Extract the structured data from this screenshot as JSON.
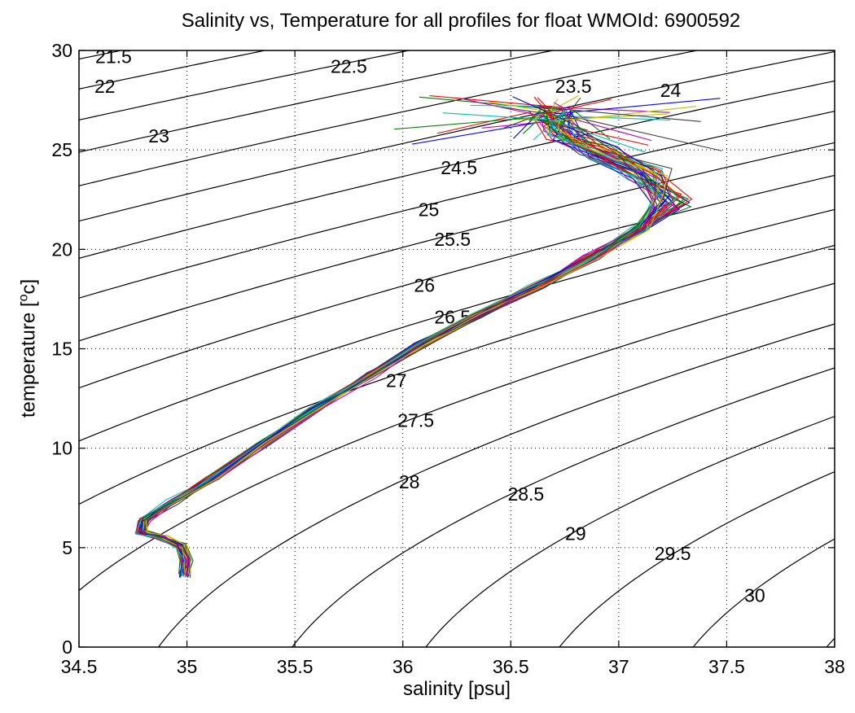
{
  "chart_data": {
    "type": "line",
    "title": "Salinity vs, Temperature for all profiles for float WMOId: 6900592",
    "xlabel": "salinity [psu]",
    "ylabel_main": "temperature [",
    "ylabel_sup": "o",
    "ylabel_end": "c]",
    "xlim": [
      34.5,
      38
    ],
    "ylim": [
      0,
      30
    ],
    "x_ticks": [
      34.5,
      35,
      35.5,
      36,
      36.5,
      37,
      37.5,
      38
    ],
    "x_tick_labels": [
      "34.5",
      "35",
      "35.5",
      "36",
      "36.5",
      "37",
      "37.5",
      "38"
    ],
    "y_ticks": [
      0,
      5,
      10,
      15,
      20,
      25,
      30
    ],
    "y_tick_labels": [
      "0",
      "5",
      "10",
      "15",
      "20",
      "25",
      "30"
    ],
    "grid": true,
    "grid_style": "dotted",
    "density_contours": {
      "levels": [
        "21.5",
        "22",
        "22.5",
        "23",
        "23.5",
        "24",
        "24.5",
        "25",
        "25.5",
        "26",
        "26.5",
        "27",
        "27.5",
        "28",
        "28.5",
        "29",
        "29.5",
        "30"
      ],
      "label_positions": [
        {
          "label": "21.5",
          "x": 34.66,
          "y": 29.7
        },
        {
          "label": "22",
          "x": 34.62,
          "y": 28.2
        },
        {
          "label": "22.5",
          "x": 35.75,
          "y": 29.2
        },
        {
          "label": "23",
          "x": 34.87,
          "y": 25.7
        },
        {
          "label": "23.5",
          "x": 36.79,
          "y": 28.2
        },
        {
          "label": "24",
          "x": 37.24,
          "y": 28.0
        },
        {
          "label": "24.5",
          "x": 36.26,
          "y": 24.1
        },
        {
          "label": "25",
          "x": 36.12,
          "y": 22.0
        },
        {
          "label": "25.5",
          "x": 36.23,
          "y": 20.5
        },
        {
          "label": "26",
          "x": 36.1,
          "y": 18.2
        },
        {
          "label": "26.5",
          "x": 36.23,
          "y": 16.6
        },
        {
          "label": "27",
          "x": 35.97,
          "y": 13.4
        },
        {
          "label": "27.5",
          "x": 36.06,
          "y": 11.4
        },
        {
          "label": "28",
          "x": 36.03,
          "y": 8.3
        },
        {
          "label": "28.5",
          "x": 36.57,
          "y": 7.7
        },
        {
          "label": "29",
          "x": 36.8,
          "y": 5.7
        },
        {
          "label": "29.5",
          "x": 37.25,
          "y": 4.7
        },
        {
          "label": "30",
          "x": 37.63,
          "y": 2.6
        }
      ]
    },
    "profiles": {
      "count": 42,
      "colors": [
        "#0000ff",
        "#008000",
        "#ff0000",
        "#00bfbf",
        "#bf00bf",
        "#bfbf00",
        "#404040"
      ],
      "mean_path": [
        {
          "x": 34.99,
          "y": 3.6
        },
        {
          "x": 35.0,
          "y": 4.4
        },
        {
          "x": 34.97,
          "y": 5.1
        },
        {
          "x": 34.88,
          "y": 5.55
        },
        {
          "x": 34.79,
          "y": 5.8
        },
        {
          "x": 34.8,
          "y": 6.4
        },
        {
          "x": 34.93,
          "y": 7.3
        },
        {
          "x": 35.12,
          "y": 8.5
        },
        {
          "x": 35.35,
          "y": 10.2
        },
        {
          "x": 35.58,
          "y": 11.9
        },
        {
          "x": 35.85,
          "y": 13.7
        },
        {
          "x": 36.08,
          "y": 15.2
        },
        {
          "x": 36.35,
          "y": 16.7
        },
        {
          "x": 36.62,
          "y": 18.1
        },
        {
          "x": 36.88,
          "y": 19.6
        },
        {
          "x": 37.1,
          "y": 21.0
        },
        {
          "x": 37.24,
          "y": 22.4
        },
        {
          "x": 37.14,
          "y": 23.8
        },
        {
          "x": 36.9,
          "y": 24.9
        },
        {
          "x": 36.75,
          "y": 25.8
        },
        {
          "x": 36.7,
          "y": 26.8
        }
      ],
      "surface_tails_end_salinity": [
        36.0,
        36.1,
        36.2,
        36.3,
        36.4,
        36.45,
        36.5,
        36.55,
        36.6,
        36.65,
        36.7,
        36.75,
        36.8,
        36.85,
        36.9,
        37.0,
        37.1,
        37.2,
        37.25,
        37.35,
        37.45,
        37.5
      ]
    }
  }
}
